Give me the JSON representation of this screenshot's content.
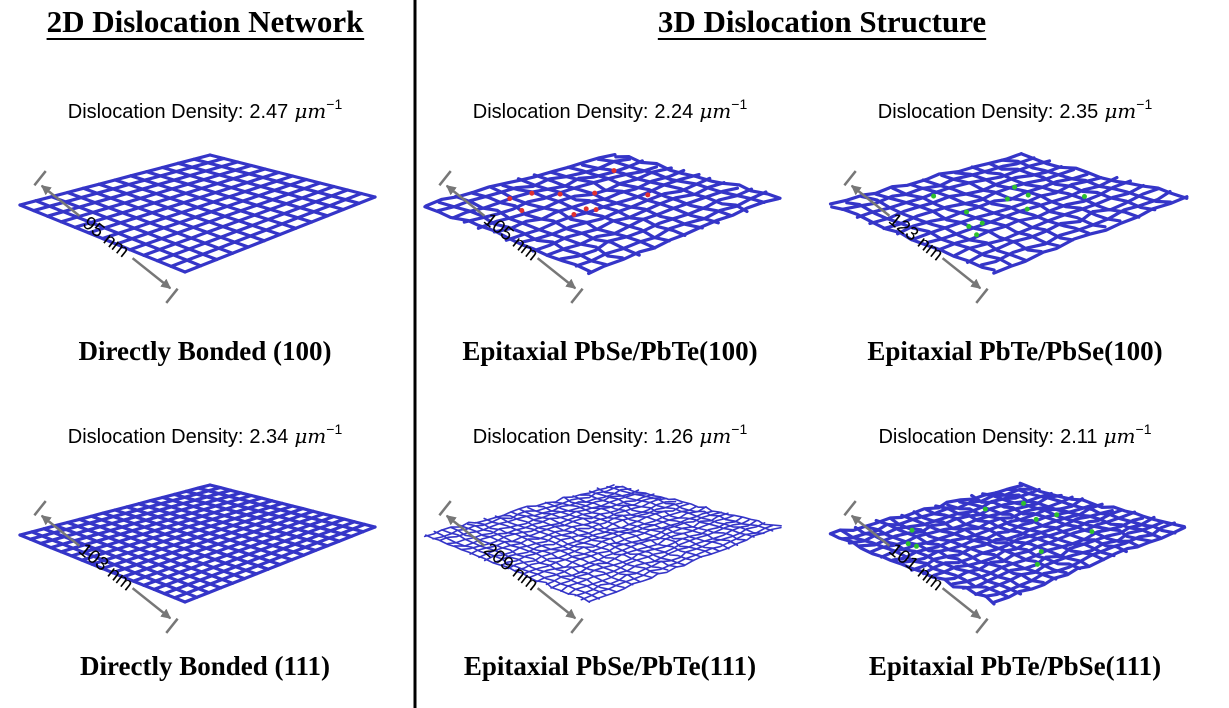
{
  "headers": [
    "2D Dislocation Network",
    "3D Dislocation Structure"
  ],
  "panels": [
    {
      "density": {
        "label": "Dislocation Density:",
        "value": "2.47",
        "unit": "μm",
        "exponent": "−1"
      },
      "scale": "95 nm",
      "caption": "Directly Bonded (100)"
    },
    {
      "density": {
        "label": "Dislocation Density:",
        "value": "2.24",
        "unit": "μm",
        "exponent": "−1"
      },
      "scale": "105 nm",
      "caption": "Epitaxial PbSe/PbTe(100)"
    },
    {
      "density": {
        "label": "Dislocation Density:",
        "value": "2.35",
        "unit": "μm",
        "exponent": "−1"
      },
      "scale": "123 nm",
      "caption": "Epitaxial PbTe/PbSe(100)"
    },
    {
      "density": {
        "label": "Dislocation Density:",
        "value": "2.34",
        "unit": "μm",
        "exponent": "−1"
      },
      "scale": "103 nm",
      "caption": "Directly Bonded (111)"
    },
    {
      "density": {
        "label": "Dislocation Density:",
        "value": "1.26",
        "unit": "μm",
        "exponent": "−1"
      },
      "scale": "209 nm",
      "caption": "Epitaxial PbSe/PbTe(111)"
    },
    {
      "density": {
        "label": "Dislocation Density:",
        "value": "2.11",
        "unit": "μm",
        "exponent": "−1"
      },
      "scale": "101 nm",
      "caption": "Epitaxial PbTe/PbSe(111)"
    }
  ]
}
